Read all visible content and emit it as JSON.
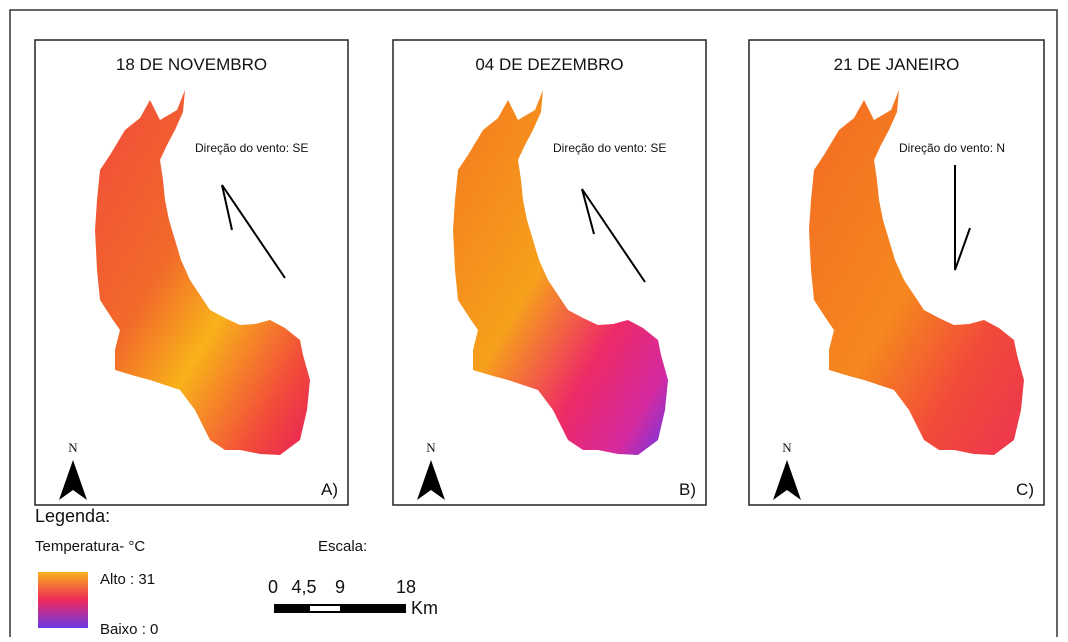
{
  "panels": [
    {
      "title": "18 DE NOVEMBRO",
      "wind": "Direção do vento: SE",
      "label": "A)",
      "north": "N"
    },
    {
      "title": "04 DE DEZEMBRO",
      "wind": "Direção do vento: SE",
      "label": "B)",
      "north": "N"
    },
    {
      "title": "21 DE JANEIRO",
      "wind": "Direção do vento: N",
      "label": "C)",
      "north": "N"
    }
  ],
  "legend": {
    "title": "Legenda:",
    "subtitle": "Temperatura- °C",
    "high": "Alto : 31",
    "low": "Baixo : 0"
  },
  "scale": {
    "title": "Escala:",
    "labels": [
      "0",
      "4,5",
      "9",
      "18"
    ],
    "unit": "Km"
  }
}
